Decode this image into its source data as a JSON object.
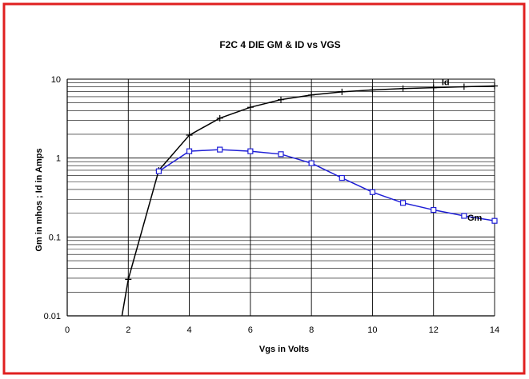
{
  "chart_data": {
    "type": "line",
    "title": "F2C 4 DIE GM & ID vs VGS",
    "xlabel": "Vgs in Volts",
    "ylabel": "Gm in  mhos ;  Id in Amps",
    "xlim": [
      0,
      14
    ],
    "ylim": [
      0.01,
      10
    ],
    "yscale": "log",
    "grid": true,
    "x_ticks": [
      "0",
      "2",
      "4",
      "6",
      "8",
      "10",
      "12",
      "14"
    ],
    "y_ticks": [
      "0.01",
      "0.1",
      "1",
      "10"
    ],
    "series": [
      {
        "name": "Id",
        "color": "#000000",
        "marker": "plus",
        "points": [
          [
            1.75,
            0.008
          ],
          [
            2,
            0.029
          ],
          [
            3,
            0.7
          ],
          [
            4,
            1.95
          ],
          [
            5,
            3.2
          ],
          [
            6,
            4.4
          ],
          [
            7,
            5.5
          ],
          [
            8,
            6.3
          ],
          [
            9,
            6.9
          ],
          [
            10,
            7.3
          ],
          [
            11,
            7.6
          ],
          [
            12,
            7.8
          ],
          [
            13,
            8.0
          ],
          [
            14,
            8.2
          ]
        ],
        "unmarked_points": [
          0
        ]
      },
      {
        "name": "Gm",
        "color": "#1f1fd6",
        "marker": "square",
        "points": [
          [
            3,
            0.68
          ],
          [
            4,
            1.22
          ],
          [
            5,
            1.28
          ],
          [
            6,
            1.22
          ],
          [
            7,
            1.12
          ],
          [
            8,
            0.86
          ],
          [
            9,
            0.56
          ],
          [
            10,
            0.37
          ],
          [
            11,
            0.27
          ],
          [
            12,
            0.22
          ],
          [
            13,
            0.185
          ],
          [
            14,
            0.16
          ]
        ]
      }
    ],
    "frame_color": "#e02020"
  }
}
